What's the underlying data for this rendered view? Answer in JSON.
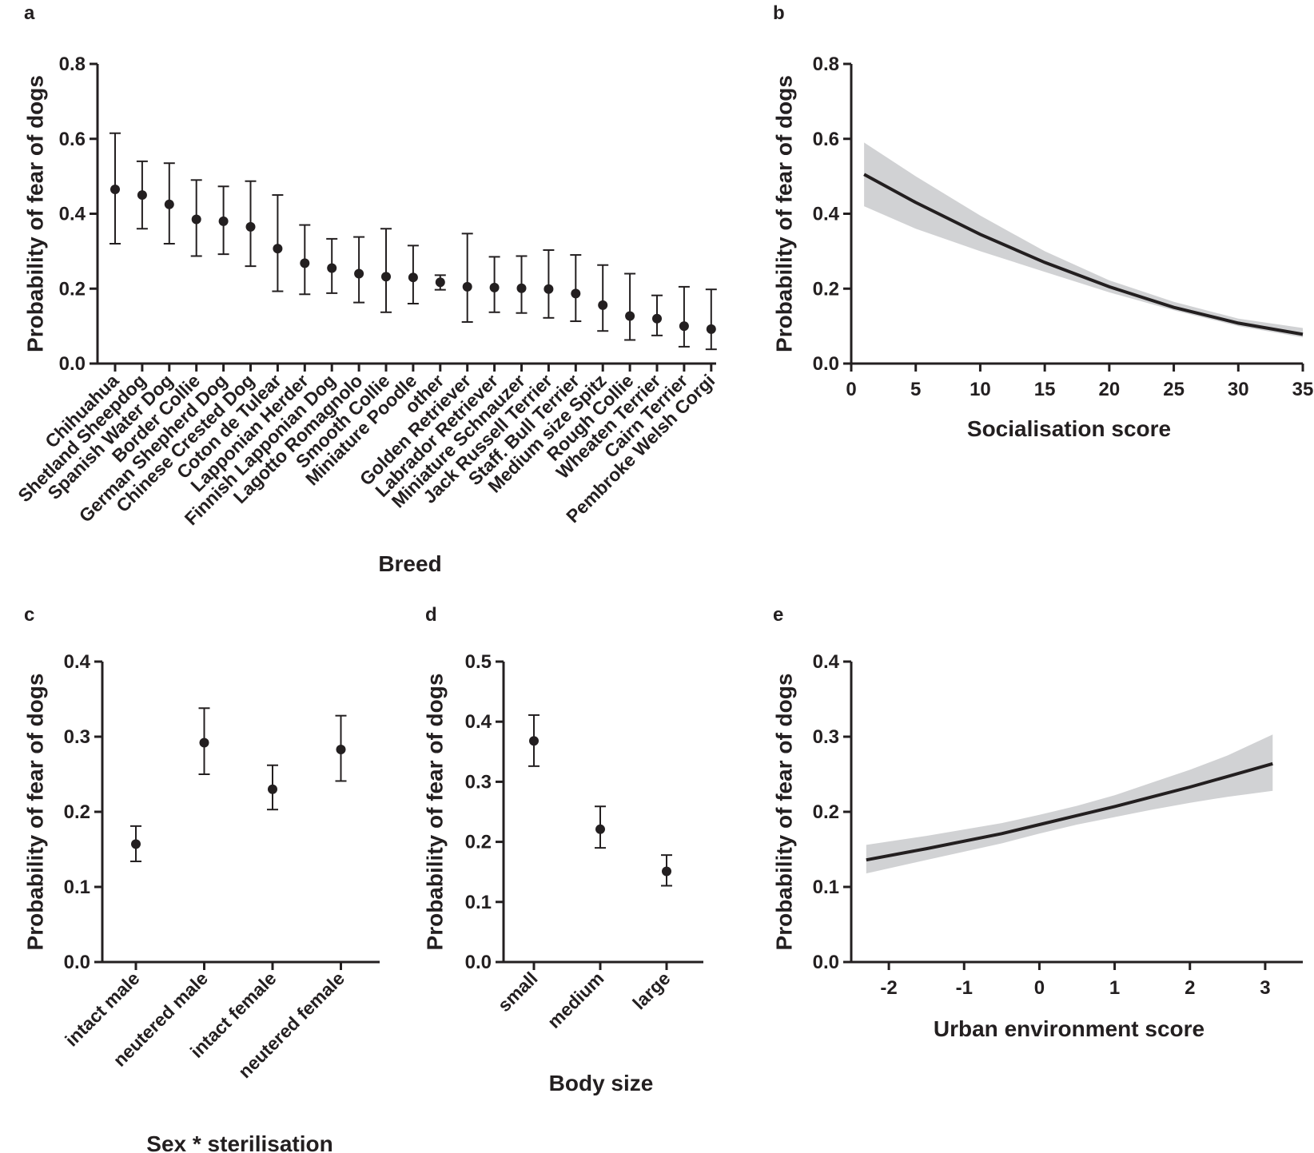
{
  "chart_data": [
    {
      "panel": "a",
      "type": "scatter",
      "xlabel": "Breed",
      "ylabel": "Probability of fear of dogs",
      "ylim": [
        0,
        0.8
      ],
      "yticks": [
        0.0,
        0.2,
        0.4,
        0.6,
        0.8
      ],
      "ytick_labels": [
        "0.0",
        "0.2",
        "0.4",
        "0.6",
        "0.8"
      ],
      "categories": [
        "Chihuahua",
        "Shetland Sheepdog",
        "Spanish Water Dog",
        "Border Collie",
        "German Shepherd Dog",
        "Chinese Crested Dog",
        "Coton de Tulear",
        "Lapponian Herder",
        "Finnish Lapponian Dog",
        "Lagotto Romagnolo",
        "Smooth Collie",
        "Miniature Poodle",
        "other",
        "Golden Retriever",
        "Labrador Retriever",
        "Miniature Schnauzer",
        "Jack Russell Terrier",
        "Staff. Bull Terrier",
        "Medium size Spitz",
        "Rough Collie",
        "Wheaten Terrier",
        "Cairn Terrier",
        "Pembroke Welsh Corgi"
      ],
      "values": [
        0.465,
        0.45,
        0.425,
        0.385,
        0.38,
        0.365,
        0.307,
        0.268,
        0.255,
        0.24,
        0.232,
        0.23,
        0.217,
        0.205,
        0.203,
        0.201,
        0.199,
        0.187,
        0.156,
        0.127,
        0.12,
        0.1,
        0.092
      ],
      "lower": [
        0.32,
        0.36,
        0.32,
        0.287,
        0.292,
        0.26,
        0.193,
        0.185,
        0.188,
        0.163,
        0.137,
        0.16,
        0.197,
        0.111,
        0.137,
        0.135,
        0.122,
        0.113,
        0.087,
        0.063,
        0.075,
        0.045,
        0.038
      ],
      "upper": [
        0.615,
        0.54,
        0.535,
        0.49,
        0.473,
        0.487,
        0.45,
        0.37,
        0.333,
        0.338,
        0.36,
        0.315,
        0.236,
        0.347,
        0.285,
        0.287,
        0.303,
        0.29,
        0.263,
        0.24,
        0.182,
        0.205,
        0.198
      ]
    },
    {
      "panel": "b",
      "type": "line",
      "xlabel": "Socialisation score",
      "ylabel": "Probability of fear of dogs",
      "xlim": [
        0,
        35
      ],
      "ylim": [
        0,
        0.8
      ],
      "xticks": [
        0,
        5,
        10,
        15,
        20,
        25,
        30,
        35
      ],
      "xtick_labels": [
        "0",
        "5",
        "10",
        "15",
        "20",
        "25",
        "30",
        "35"
      ],
      "yticks": [
        0.0,
        0.2,
        0.4,
        0.6,
        0.8
      ],
      "ytick_labels": [
        "0.0",
        "0.2",
        "0.4",
        "0.6",
        "0.8"
      ],
      "x": [
        1,
        5,
        10,
        15,
        20,
        25,
        30,
        35
      ],
      "y": [
        0.505,
        0.43,
        0.345,
        0.27,
        0.205,
        0.15,
        0.108,
        0.078
      ],
      "band_lower": [
        0.42,
        0.36,
        0.3,
        0.245,
        0.19,
        0.142,
        0.1,
        0.07
      ],
      "band_upper": [
        0.59,
        0.5,
        0.395,
        0.3,
        0.222,
        0.165,
        0.12,
        0.095
      ]
    },
    {
      "panel": "c",
      "type": "scatter",
      "xlabel": "Sex * sterilisation",
      "ylabel": "Probability of fear of dogs",
      "ylim": [
        0,
        0.4
      ],
      "yticks": [
        0.0,
        0.1,
        0.2,
        0.3,
        0.4
      ],
      "ytick_labels": [
        "0.0",
        "0.1",
        "0.2",
        "0.3",
        "0.4"
      ],
      "categories": [
        "intact male",
        "neutered male",
        "intact female",
        "neutered female"
      ],
      "values": [
        0.157,
        0.292,
        0.23,
        0.283
      ],
      "lower": [
        0.134,
        0.25,
        0.203,
        0.241
      ],
      "upper": [
        0.181,
        0.338,
        0.262,
        0.328
      ]
    },
    {
      "panel": "d",
      "type": "scatter",
      "xlabel": "Body size",
      "ylabel": "Probability of fear of dogs",
      "ylim": [
        0,
        0.5
      ],
      "yticks": [
        0.0,
        0.1,
        0.2,
        0.3,
        0.4,
        0.5
      ],
      "ytick_labels": [
        "0.0",
        "0.1",
        "0.2",
        "0.3",
        "0.4",
        "0.5"
      ],
      "categories": [
        "small",
        "medium",
        "large"
      ],
      "values": [
        0.368,
        0.221,
        0.151
      ],
      "lower": [
        0.326,
        0.19,
        0.127
      ],
      "upper": [
        0.411,
        0.259,
        0.178
      ]
    },
    {
      "panel": "e",
      "type": "line",
      "xlabel": "Urban environment score",
      "ylabel": "Probability of fear of dogs",
      "xlim": [
        -2.5,
        3.5
      ],
      "ylim": [
        0,
        0.4
      ],
      "xticks": [
        -2,
        -1,
        0,
        1,
        2,
        3
      ],
      "xtick_labels": [
        "-2",
        "-1",
        "0",
        "1",
        "2",
        "3"
      ],
      "yticks": [
        0.0,
        0.1,
        0.2,
        0.3,
        0.4
      ],
      "ytick_labels": [
        "0.0",
        "0.1",
        "0.2",
        "0.3",
        "0.4"
      ],
      "x": [
        -2.3,
        -1.5,
        -0.5,
        0,
        0.5,
        1,
        1.5,
        2,
        2.5,
        3.1
      ],
      "y": [
        0.136,
        0.151,
        0.171,
        0.183,
        0.195,
        0.207,
        0.22,
        0.233,
        0.247,
        0.264
      ],
      "band_lower": [
        0.118,
        0.136,
        0.158,
        0.171,
        0.183,
        0.193,
        0.203,
        0.212,
        0.22,
        0.228
      ],
      "band_upper": [
        0.156,
        0.168,
        0.185,
        0.196,
        0.208,
        0.222,
        0.239,
        0.256,
        0.275,
        0.303
      ]
    }
  ]
}
